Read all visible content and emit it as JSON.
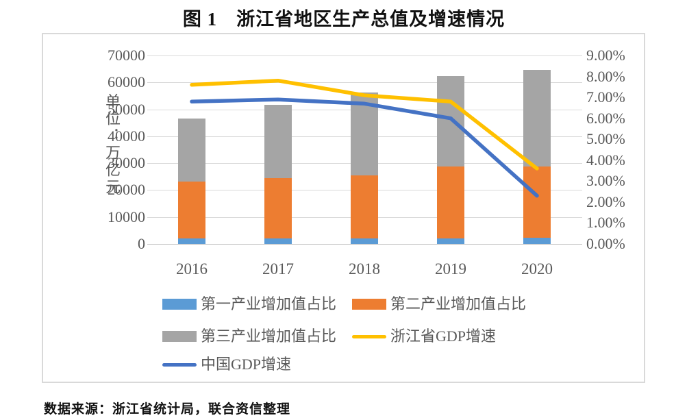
{
  "title": "图 1　浙江省地区生产总值及增速情况",
  "source_note": "数据来源：浙江省统计局，联合资信整理",
  "y_left_axis": {
    "title": "单位：万亿元",
    "ticks": [
      "70000",
      "60000",
      "50000",
      "40000",
      "30000",
      "20000",
      "10000",
      "0"
    ]
  },
  "y_right_axis": {
    "ticks": [
      "9.00%",
      "8.00%",
      "7.00%",
      "6.00%",
      "5.00%",
      "4.00%",
      "3.00%",
      "2.00%",
      "1.00%",
      "0.00%"
    ]
  },
  "x_axis": {
    "labels": [
      "2016",
      "2017",
      "2018",
      "2019",
      "2020"
    ]
  },
  "chart_data": {
    "type": "combo (stacked bar + line)",
    "title": "图 1　浙江省地区生产总值及增速情况",
    "categories": [
      "2016",
      "2017",
      "2018",
      "2019",
      "2020"
    ],
    "bar_series": [
      {
        "name": "第一产业增加值占比",
        "color": "#5B9BD5",
        "values": [
          1966,
          1933,
          1967,
          2097,
          2169
        ]
      },
      {
        "name": "第二产业增加值占比",
        "color": "#ED7D31",
        "values": [
          21195,
          22472,
          23506,
          26567,
          26567
        ]
      },
      {
        "name": "第三产业增加值占比",
        "color": "#A5A5A5",
        "values": [
          23324,
          27363,
          30724,
          33688,
          35877
        ]
      }
    ],
    "bar_totals": [
      46485,
      51768,
      56197,
      62352,
      64613
    ],
    "line_series": [
      {
        "name": "浙江省GDP增速",
        "color": "#FFC000",
        "values": [
          7.6,
          7.8,
          7.1,
          6.8,
          3.6
        ]
      },
      {
        "name": "中国GDP增速",
        "color": "#4472C4",
        "values": [
          6.8,
          6.9,
          6.7,
          6.0,
          2.3
        ]
      }
    ],
    "left_axis": {
      "label": "单位：万亿元",
      "min": 0,
      "max": 70000,
      "tick_step": 10000
    },
    "right_axis": {
      "unit": "%",
      "min": 0,
      "max": 9,
      "tick_step": 1
    },
    "grid": true,
    "legend_position": "bottom"
  },
  "legend": {
    "rows": [
      [
        {
          "swatch": "bar",
          "color": "#5B9BD5",
          "label": "第一产业增加值占比"
        },
        {
          "swatch": "bar",
          "color": "#ED7D31",
          "label": "第二产业增加值占比"
        }
      ],
      [
        {
          "swatch": "bar",
          "color": "#A5A5A5",
          "label": "第三产业增加值占比"
        },
        {
          "swatch": "line",
          "color": "#FFC000",
          "label": "浙江省GDP增速"
        }
      ],
      [
        {
          "swatch": "line",
          "color": "#4472C4",
          "label": "中国GDP增速"
        }
      ]
    ]
  },
  "colors": {
    "grid": "#D9D9D9",
    "axis_text": "#595959",
    "frame_border": "#D9D9D9"
  }
}
